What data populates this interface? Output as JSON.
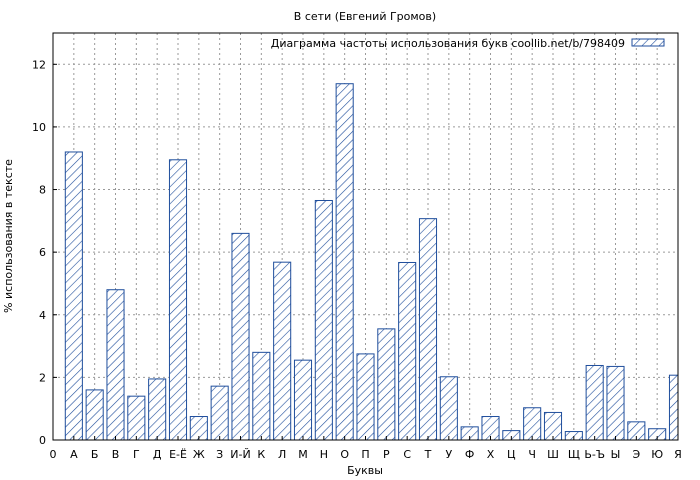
{
  "chart_data": {
    "type": "bar",
    "title": "В сети (Евгений Громов)",
    "xlabel": "Буквы",
    "ylabel": "% использования в тексте",
    "ylim": [
      0,
      13
    ],
    "yticks": [
      0,
      2,
      4,
      6,
      8,
      10,
      12
    ],
    "grid": true,
    "legend_position": "top-right",
    "series": [
      {
        "name": "Диаграмма частоты использования букв coollib.net/b/798409",
        "color": "#1f4e9c",
        "pattern": "diagonal-hatch"
      }
    ],
    "x_tick_labels": [
      "0",
      "А",
      "Б",
      "В",
      "Г",
      "Д",
      "Е-Ё",
      "Ж",
      "З",
      "И-Й",
      "К",
      "Л",
      "М",
      "Н",
      "О",
      "П",
      "Р",
      "С",
      "Т",
      "У",
      "Ф",
      "Х",
      "Ц",
      "Ч",
      "Ш",
      "Щ",
      "Ь-Ъ",
      "Ы",
      "Э",
      "Ю",
      "Я"
    ],
    "categories": [
      "А",
      "Б",
      "В",
      "Г",
      "Д",
      "Е-Ё",
      "Ж",
      "З",
      "И-Й",
      "К",
      "Л",
      "М",
      "Н",
      "О",
      "П",
      "Р",
      "С",
      "Т",
      "У",
      "Ф",
      "Х",
      "Ц",
      "Ч",
      "Ш",
      "Щ",
      "Ь-Ъ",
      "Ы",
      "Э",
      "Ю",
      "Я"
    ],
    "values": [
      9.2,
      1.6,
      4.8,
      1.4,
      1.95,
      8.95,
      0.75,
      1.72,
      6.6,
      2.8,
      5.68,
      2.55,
      7.65,
      11.38,
      2.75,
      3.55,
      5.67,
      7.07,
      2.02,
      0.42,
      0.75,
      0.3,
      1.03,
      0.88,
      0.27,
      2.38,
      2.35,
      0.58,
      0.36,
      2.07
    ]
  }
}
